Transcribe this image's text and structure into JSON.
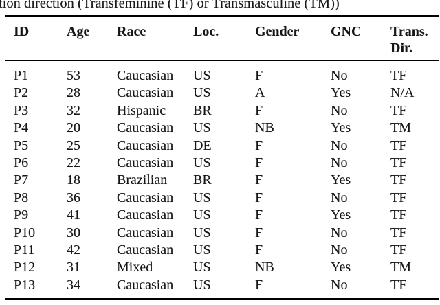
{
  "caption_fragment": "tion direction (Transfeminine (TF) or Transmasculine (TM))",
  "table": {
    "header": {
      "id": "ID",
      "age": "Age",
      "race": "Race",
      "loc": "Loc.",
      "gender": "Gender",
      "gnc": "GNC",
      "trans_dir_line1": "Trans.",
      "trans_dir_line2": "Dir."
    },
    "columns": [
      "ID",
      "Age",
      "Race",
      "Loc.",
      "Gender",
      "GNC",
      "Trans. Dir."
    ],
    "rows": [
      [
        "P1",
        "53",
        "Caucasian",
        "US",
        "F",
        "No",
        "TF"
      ],
      [
        "P2",
        "28",
        "Caucasian",
        "US",
        "A",
        "Yes",
        "N/A"
      ],
      [
        "P3",
        "32",
        "Hispanic",
        "BR",
        "F",
        "No",
        "TF"
      ],
      [
        "P4",
        "20",
        "Caucasian",
        "US",
        "NB",
        "Yes",
        "TM"
      ],
      [
        "P5",
        "25",
        "Caucasian",
        "DE",
        "F",
        "No",
        "TF"
      ],
      [
        "P6",
        "22",
        "Caucasian",
        "US",
        "F",
        "No",
        "TF"
      ],
      [
        "P7",
        "18",
        "Brazilian",
        "BR",
        "F",
        "Yes",
        "TF"
      ],
      [
        "P8",
        "36",
        "Caucasian",
        "US",
        "F",
        "No",
        "TF"
      ],
      [
        "P9",
        "41",
        "Caucasian",
        "US",
        "F",
        "Yes",
        "TF"
      ],
      [
        "P10",
        "30",
        "Caucasian",
        "US",
        "F",
        "No",
        "TF"
      ],
      [
        "P11",
        "42",
        "Caucasian",
        "US",
        "F",
        "No",
        "TF"
      ],
      [
        "P12",
        "31",
        "Mixed",
        "US",
        "NB",
        "Yes",
        "TM"
      ],
      [
        "P13",
        "34",
        "Caucasian",
        "US",
        "F",
        "No",
        "TF"
      ]
    ]
  },
  "colors": {
    "text": "#1a1a1a",
    "rule": "#000000",
    "background": "#ffffff"
  }
}
